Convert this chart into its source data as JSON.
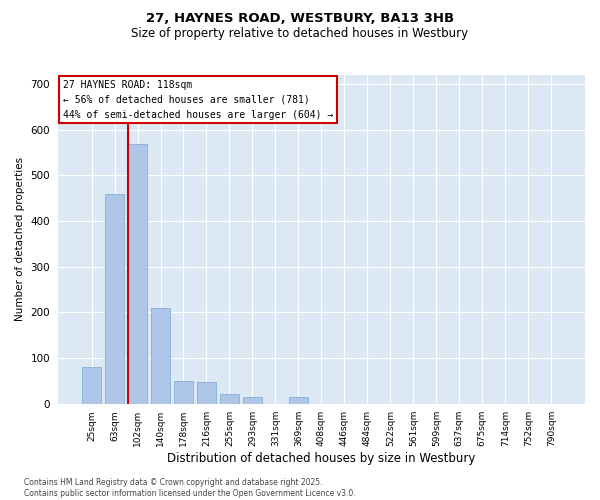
{
  "title_line1": "27, HAYNES ROAD, WESTBURY, BA13 3HB",
  "title_line2": "Size of property relative to detached houses in Westbury",
  "xlabel": "Distribution of detached houses by size in Westbury",
  "ylabel": "Number of detached properties",
  "categories": [
    "25sqm",
    "63sqm",
    "102sqm",
    "140sqm",
    "178sqm",
    "216sqm",
    "255sqm",
    "293sqm",
    "331sqm",
    "369sqm",
    "408sqm",
    "446sqm",
    "484sqm",
    "522sqm",
    "561sqm",
    "599sqm",
    "637sqm",
    "675sqm",
    "714sqm",
    "752sqm",
    "790sqm"
  ],
  "values": [
    80,
    460,
    570,
    210,
    50,
    47,
    22,
    15,
    0,
    15,
    0,
    0,
    0,
    0,
    0,
    0,
    0,
    0,
    0,
    0,
    0
  ],
  "bar_color": "#aec6e8",
  "bar_edge_color": "#7aa8d0",
  "background_color": "#dce9f5",
  "grid_color": "#ffffff",
  "ref_line_color": "#cc0000",
  "ref_line_x": 1.575,
  "annotation_text": "27 HAYNES ROAD: 118sqm\n← 56% of detached houses are smaller (781)\n44% of semi-detached houses are larger (604) →",
  "annotation_box_edgecolor": "#cc0000",
  "ylim": [
    0,
    720
  ],
  "yticks": [
    0,
    100,
    200,
    300,
    400,
    500,
    600,
    700
  ],
  "footer": "Contains HM Land Registry data © Crown copyright and database right 2025.\nContains public sector information licensed under the Open Government Licence v3.0.",
  "fig_width": 6.0,
  "fig_height": 5.0,
  "dpi": 100
}
